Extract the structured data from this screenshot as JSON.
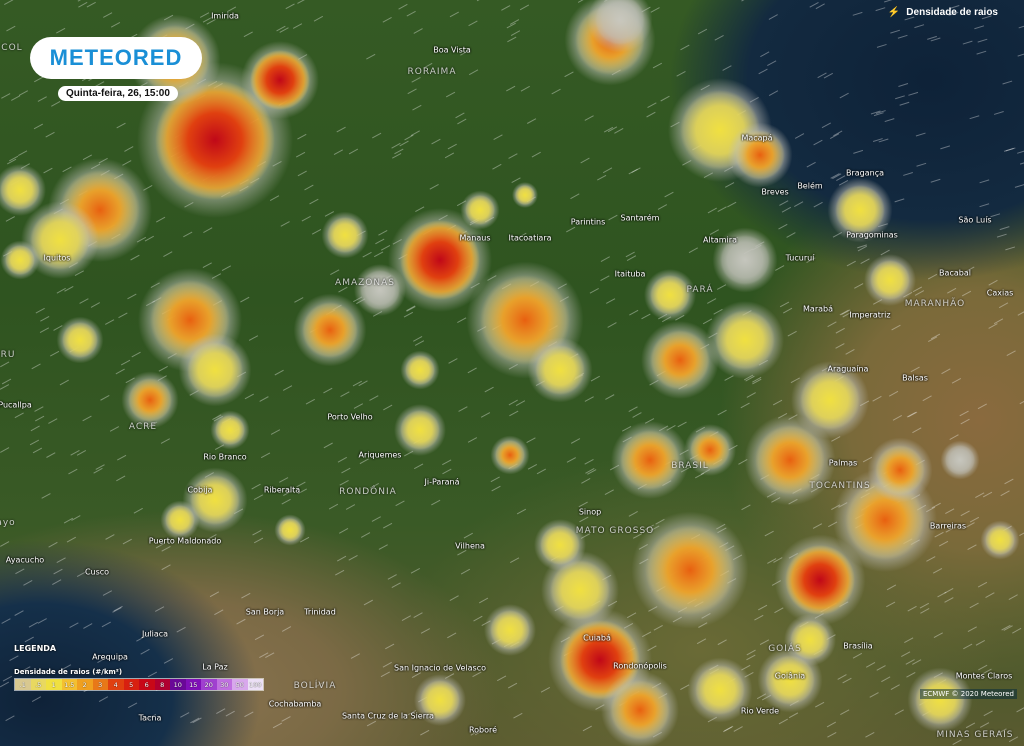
{
  "brand": {
    "logo": "METEORED"
  },
  "timestamp": "Quinta-feira, 26, 15:00",
  "layer": {
    "label": "Densidade de raios",
    "icon": "lightning-icon"
  },
  "legend": {
    "title": "LEGENDA",
    "subtitle": "Densidade de raios (#/km²)",
    "values": [
      ".1",
      ".5",
      "1",
      "1.5",
      "2",
      "3",
      "4",
      "5",
      "6",
      "8",
      "10",
      "15",
      "20",
      "30",
      "50",
      "100"
    ],
    "colors": [
      "#d8c890",
      "#e8d860",
      "#f0e040",
      "#f4c030",
      "#f0a020",
      "#e87818",
      "#e04010",
      "#d82010",
      "#c80818",
      "#b00030",
      "#6a0898",
      "#8010b8",
      "#a040d0",
      "#c070e0",
      "#d8a8ec",
      "#ece0f6"
    ]
  },
  "copyright": "ECMWF © 2020 Meteored",
  "places": [
    "Imirida",
    "Boa Vista",
    "Macapá",
    "Belém",
    "Bragança",
    "Breves",
    "São Luís",
    "Paragominas",
    "Santarém",
    "Altamira",
    "Tucuruí",
    "Parintins",
    "Manaus",
    "Itacoatiara",
    "Itaituba",
    "Bacabal",
    "Caxias",
    "Marabá",
    "Imperatriz",
    "Iquitos",
    "Pucallpa",
    "Porto Velho",
    "Rio Branco",
    "Ariquemes",
    "Palmas",
    "Ji-Paraná",
    "Riberalta",
    "Cobija",
    "Sinop",
    "Barreiras",
    "Vilhena",
    "Puerto Maldonado",
    "Ayacucho",
    "Cusco",
    "San Borja",
    "Trinidad",
    "Juliaca",
    "Cuiabá",
    "Brasília",
    "La Paz",
    "San Ignacio de Velasco",
    "Rondonópolis",
    "Goiânia",
    "Montes Claros",
    "Arequipa",
    "Cochabamba",
    "Santa Cruz de la Sierra",
    "Roboré",
    "Rio Verde",
    "Tacna",
    "Araguaína",
    "Balsas"
  ],
  "regions": [
    "RORAIMA",
    "AMAZONAS",
    "PARÁ",
    "MARANHÃO",
    "ACRE",
    "RONDÔNIA",
    "BRASIL",
    "TOCANTINS",
    "MATO GROSSO",
    "GOIÁS",
    "BOLÍVIA",
    "MINAS GERAIS",
    "COL",
    "RU",
    "ayo"
  ]
}
